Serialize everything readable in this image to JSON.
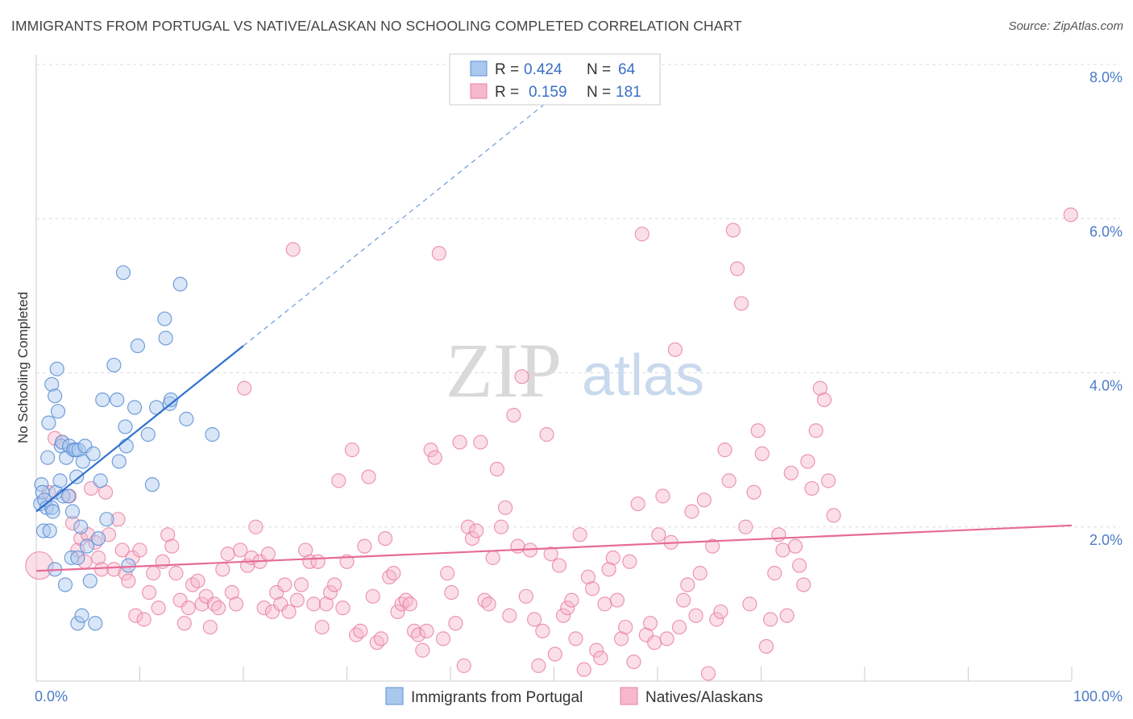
{
  "header": {
    "title": "IMMIGRANTS FROM PORTUGAL VS NATIVE/ALASKAN NO SCHOOLING COMPLETED CORRELATION CHART",
    "source": "Source: ZipAtlas.com"
  },
  "watermark": {
    "zip": "ZIP",
    "atlas": "atlas"
  },
  "colors": {
    "blue_fill": "#aac8ee",
    "blue_stroke": "#5b8fd6",
    "blue_line": "#2f6fce",
    "pink_fill": "#f6b8cc",
    "pink_stroke": "#e87ea1",
    "pink_line": "#e66b98",
    "axis_label": "#4a7cc7",
    "grid": "#dddddd"
  },
  "legend_top": {
    "rows": [
      {
        "r_label": "R =",
        "r_value": "0.424",
        "n_label": "N =",
        "n_value": "64"
      },
      {
        "r_label": "R =",
        "r_value": "0.159",
        "n_label": "N =",
        "n_value": "181"
      }
    ]
  },
  "legend_bottom": {
    "items": [
      {
        "label": "Immigrants from Portugal"
      },
      {
        "label": "Natives/Alaskans"
      }
    ]
  },
  "chart_data": {
    "type": "scatter",
    "title": "IMMIGRANTS FROM PORTUGAL VS NATIVE/ALASKAN NO SCHOOLING COMPLETED CORRELATION CHART",
    "xlabel": "",
    "ylabel": "No Schooling Completed",
    "xlim": [
      0,
      100
    ],
    "ylim": [
      0,
      8.0
    ],
    "x_tick_labels": [
      "0.0%",
      "100.0%"
    ],
    "y_ticks": [
      2.0,
      4.0,
      6.0,
      8.0
    ],
    "y_tick_labels": [
      "2.0%",
      "4.0%",
      "6.0%",
      "8.0%"
    ],
    "grid": true,
    "legend_placement": "top-center",
    "series": [
      {
        "name": "Immigrants from Portugal",
        "color": "#aac8ee",
        "r": 0.424,
        "n": 64,
        "trend": {
          "x": [
            0,
            20
          ],
          "y": [
            2.2,
            4.35
          ],
          "extension_x": [
            20,
            52
          ],
          "extension_y": [
            4.35,
            7.8
          ]
        },
        "points": [
          [
            0.4,
            2.3
          ],
          [
            0.5,
            2.55
          ],
          [
            0.6,
            2.45
          ],
          [
            0.7,
            1.95
          ],
          [
            0.8,
            2.35
          ],
          [
            1.0,
            2.25
          ],
          [
            1.1,
            2.9
          ],
          [
            1.2,
            3.35
          ],
          [
            1.3,
            1.95
          ],
          [
            1.5,
            3.85
          ],
          [
            1.5,
            2.25
          ],
          [
            1.6,
            2.2
          ],
          [
            1.8,
            3.7
          ],
          [
            1.8,
            1.45
          ],
          [
            1.9,
            2.45
          ],
          [
            2.0,
            4.05
          ],
          [
            2.1,
            3.5
          ],
          [
            2.3,
            2.6
          ],
          [
            2.4,
            3.05
          ],
          [
            2.5,
            3.1
          ],
          [
            2.6,
            2.4
          ],
          [
            2.8,
            1.25
          ],
          [
            2.9,
            2.9
          ],
          [
            3.1,
            2.4
          ],
          [
            3.2,
            3.05
          ],
          [
            3.4,
            1.6
          ],
          [
            3.5,
            2.2
          ],
          [
            3.6,
            3.0
          ],
          [
            3.8,
            3.0
          ],
          [
            3.9,
            2.65
          ],
          [
            4.0,
            0.75
          ],
          [
            4.0,
            1.6
          ],
          [
            4.1,
            3.0
          ],
          [
            4.3,
            2.0
          ],
          [
            4.4,
            0.85
          ],
          [
            4.5,
            2.85
          ],
          [
            4.7,
            3.05
          ],
          [
            4.9,
            1.75
          ],
          [
            5.2,
            1.3
          ],
          [
            5.5,
            2.95
          ],
          [
            5.7,
            0.75
          ],
          [
            6.0,
            1.85
          ],
          [
            6.2,
            2.6
          ],
          [
            6.4,
            3.65
          ],
          [
            6.8,
            2.1
          ],
          [
            7.5,
            4.1
          ],
          [
            7.8,
            3.65
          ],
          [
            8.0,
            2.85
          ],
          [
            8.4,
            5.3
          ],
          [
            8.6,
            3.3
          ],
          [
            8.7,
            3.05
          ],
          [
            8.9,
            1.5
          ],
          [
            9.5,
            3.55
          ],
          [
            9.8,
            4.35
          ],
          [
            10.8,
            3.2
          ],
          [
            11.2,
            2.55
          ],
          [
            11.6,
            3.55
          ],
          [
            12.4,
            4.7
          ],
          [
            12.5,
            4.45
          ],
          [
            12.9,
            3.6
          ],
          [
            13.0,
            3.65
          ],
          [
            13.9,
            5.15
          ],
          [
            14.5,
            3.4
          ],
          [
            17.0,
            3.2
          ]
        ]
      },
      {
        "name": "Natives/Alaskans",
        "color": "#f6b8cc",
        "r": 0.159,
        "n": 181,
        "trend": {
          "x": [
            0,
            100
          ],
          "y": [
            1.43,
            2.02
          ]
        },
        "points": [
          [
            0.3,
            1.5
          ],
          [
            1.2,
            2.45
          ],
          [
            1.8,
            3.15
          ],
          [
            2.5,
            3.1
          ],
          [
            3.2,
            2.4
          ],
          [
            3.5,
            2.05
          ],
          [
            4.0,
            1.7
          ],
          [
            4.3,
            1.85
          ],
          [
            4.7,
            1.55
          ],
          [
            5.0,
            1.9
          ],
          [
            5.3,
            2.5
          ],
          [
            5.7,
            1.8
          ],
          [
            6.0,
            1.6
          ],
          [
            6.3,
            1.45
          ],
          [
            6.7,
            2.45
          ],
          [
            7.0,
            1.9
          ],
          [
            7.5,
            1.45
          ],
          [
            7.9,
            2.1
          ],
          [
            8.3,
            1.7
          ],
          [
            8.6,
            1.4
          ],
          [
            8.9,
            1.3
          ],
          [
            9.3,
            1.6
          ],
          [
            9.6,
            0.85
          ],
          [
            10.0,
            1.7
          ],
          [
            10.4,
            0.8
          ],
          [
            10.9,
            1.15
          ],
          [
            11.3,
            1.4
          ],
          [
            11.8,
            0.95
          ],
          [
            12.2,
            1.55
          ],
          [
            12.7,
            1.9
          ],
          [
            13.1,
            1.75
          ],
          [
            13.5,
            1.4
          ],
          [
            13.9,
            1.05
          ],
          [
            14.3,
            0.75
          ],
          [
            14.7,
            0.95
          ],
          [
            15.1,
            1.25
          ],
          [
            15.6,
            1.3
          ],
          [
            16.0,
            1.0
          ],
          [
            16.4,
            1.1
          ],
          [
            16.8,
            0.7
          ],
          [
            17.2,
            1.0
          ],
          [
            17.6,
            0.95
          ],
          [
            18.0,
            1.45
          ],
          [
            18.5,
            1.65
          ],
          [
            18.9,
            1.15
          ],
          [
            19.3,
            1.0
          ],
          [
            19.7,
            1.7
          ],
          [
            20.1,
            3.8
          ],
          [
            20.4,
            1.5
          ],
          [
            20.8,
            1.6
          ],
          [
            21.2,
            2.0
          ],
          [
            21.6,
            1.55
          ],
          [
            22.0,
            0.95
          ],
          [
            22.4,
            1.65
          ],
          [
            22.8,
            0.9
          ],
          [
            23.2,
            1.15
          ],
          [
            23.6,
            1.0
          ],
          [
            24.0,
            1.25
          ],
          [
            24.4,
            0.9
          ],
          [
            24.8,
            5.6
          ],
          [
            25.2,
            1.05
          ],
          [
            25.6,
            1.25
          ],
          [
            26.0,
            1.7
          ],
          [
            26.4,
            1.55
          ],
          [
            26.8,
            1.0
          ],
          [
            27.2,
            1.55
          ],
          [
            27.6,
            0.7
          ],
          [
            28.0,
            1.0
          ],
          [
            28.4,
            1.15
          ],
          [
            28.8,
            1.25
          ],
          [
            29.2,
            2.6
          ],
          [
            29.6,
            0.95
          ],
          [
            30.0,
            1.55
          ],
          [
            30.5,
            3.0
          ],
          [
            30.9,
            0.6
          ],
          [
            31.3,
            0.65
          ],
          [
            31.7,
            1.75
          ],
          [
            32.1,
            2.65
          ],
          [
            32.5,
            1.1
          ],
          [
            32.9,
            0.5
          ],
          [
            33.3,
            0.55
          ],
          [
            33.7,
            1.85
          ],
          [
            34.1,
            1.35
          ],
          [
            34.5,
            1.4
          ],
          [
            34.9,
            0.9
          ],
          [
            35.3,
            1.0
          ],
          [
            35.7,
            1.05
          ],
          [
            36.1,
            1.0
          ],
          [
            36.5,
            0.65
          ],
          [
            36.9,
            0.6
          ],
          [
            37.3,
            0.4
          ],
          [
            37.7,
            0.65
          ],
          [
            38.1,
            3.0
          ],
          [
            38.5,
            2.9
          ],
          [
            38.9,
            5.55
          ],
          [
            39.3,
            0.55
          ],
          [
            39.7,
            1.4
          ],
          [
            40.1,
            1.15
          ],
          [
            40.5,
            0.75
          ],
          [
            40.9,
            3.1
          ],
          [
            41.3,
            0.2
          ],
          [
            41.7,
            2.0
          ],
          [
            42.1,
            1.85
          ],
          [
            42.5,
            1.95
          ],
          [
            42.9,
            3.1
          ],
          [
            43.3,
            1.05
          ],
          [
            43.7,
            1.0
          ],
          [
            44.1,
            1.6
          ],
          [
            44.5,
            2.75
          ],
          [
            44.9,
            2.0
          ],
          [
            45.3,
            2.25
          ],
          [
            45.7,
            0.85
          ],
          [
            46.1,
            3.45
          ],
          [
            46.5,
            1.75
          ],
          [
            46.9,
            3.95
          ],
          [
            47.3,
            1.1
          ],
          [
            47.7,
            1.7
          ],
          [
            48.1,
            0.8
          ],
          [
            48.5,
            0.2
          ],
          [
            48.9,
            0.65
          ],
          [
            49.3,
            3.2
          ],
          [
            49.7,
            1.65
          ],
          [
            50.1,
            0.35
          ],
          [
            50.5,
            1.5
          ],
          [
            50.9,
            0.85
          ],
          [
            51.3,
            0.95
          ],
          [
            51.7,
            1.05
          ],
          [
            52.1,
            0.55
          ],
          [
            52.5,
            1.9
          ],
          [
            52.9,
            0.15
          ],
          [
            53.3,
            1.35
          ],
          [
            53.7,
            1.2
          ],
          [
            54.1,
            0.4
          ],
          [
            54.5,
            0.3
          ],
          [
            54.9,
            1.0
          ],
          [
            55.3,
            1.45
          ],
          [
            55.7,
            1.6
          ],
          [
            56.1,
            1.05
          ],
          [
            56.5,
            0.55
          ],
          [
            56.9,
            0.7
          ],
          [
            57.3,
            1.55
          ],
          [
            57.7,
            0.25
          ],
          [
            58.1,
            2.3
          ],
          [
            58.5,
            5.8
          ],
          [
            58.9,
            0.6
          ],
          [
            59.3,
            0.75
          ],
          [
            59.7,
            0.5
          ],
          [
            60.1,
            1.9
          ],
          [
            60.5,
            2.4
          ],
          [
            60.9,
            0.55
          ],
          [
            61.3,
            1.8
          ],
          [
            61.7,
            4.3
          ],
          [
            62.1,
            0.7
          ],
          [
            62.5,
            1.05
          ],
          [
            62.9,
            1.25
          ],
          [
            63.3,
            2.2
          ],
          [
            63.7,
            0.85
          ],
          [
            64.1,
            1.4
          ],
          [
            64.5,
            2.35
          ],
          [
            64.9,
            0.1
          ],
          [
            65.3,
            1.75
          ],
          [
            65.7,
            0.8
          ],
          [
            66.1,
            0.9
          ],
          [
            66.5,
            3.0
          ],
          [
            66.9,
            2.6
          ],
          [
            67.3,
            5.85
          ],
          [
            67.7,
            5.35
          ],
          [
            68.1,
            4.9
          ],
          [
            68.5,
            2.0
          ],
          [
            68.9,
            1.0
          ],
          [
            69.3,
            2.45
          ],
          [
            69.7,
            3.25
          ],
          [
            70.1,
            2.95
          ],
          [
            70.5,
            0.45
          ],
          [
            70.9,
            0.8
          ],
          [
            71.3,
            1.4
          ],
          [
            71.7,
            1.9
          ],
          [
            72.1,
            1.7
          ],
          [
            72.5,
            0.85
          ],
          [
            72.9,
            2.7
          ],
          [
            73.3,
            1.75
          ],
          [
            73.7,
            1.5
          ],
          [
            74.1,
            1.25
          ],
          [
            74.5,
            2.85
          ],
          [
            74.9,
            2.5
          ],
          [
            75.3,
            3.25
          ],
          [
            75.7,
            3.8
          ],
          [
            76.1,
            3.65
          ],
          [
            76.5,
            2.6
          ],
          [
            77.0,
            2.15
          ],
          [
            99.9,
            6.05
          ]
        ]
      }
    ]
  }
}
